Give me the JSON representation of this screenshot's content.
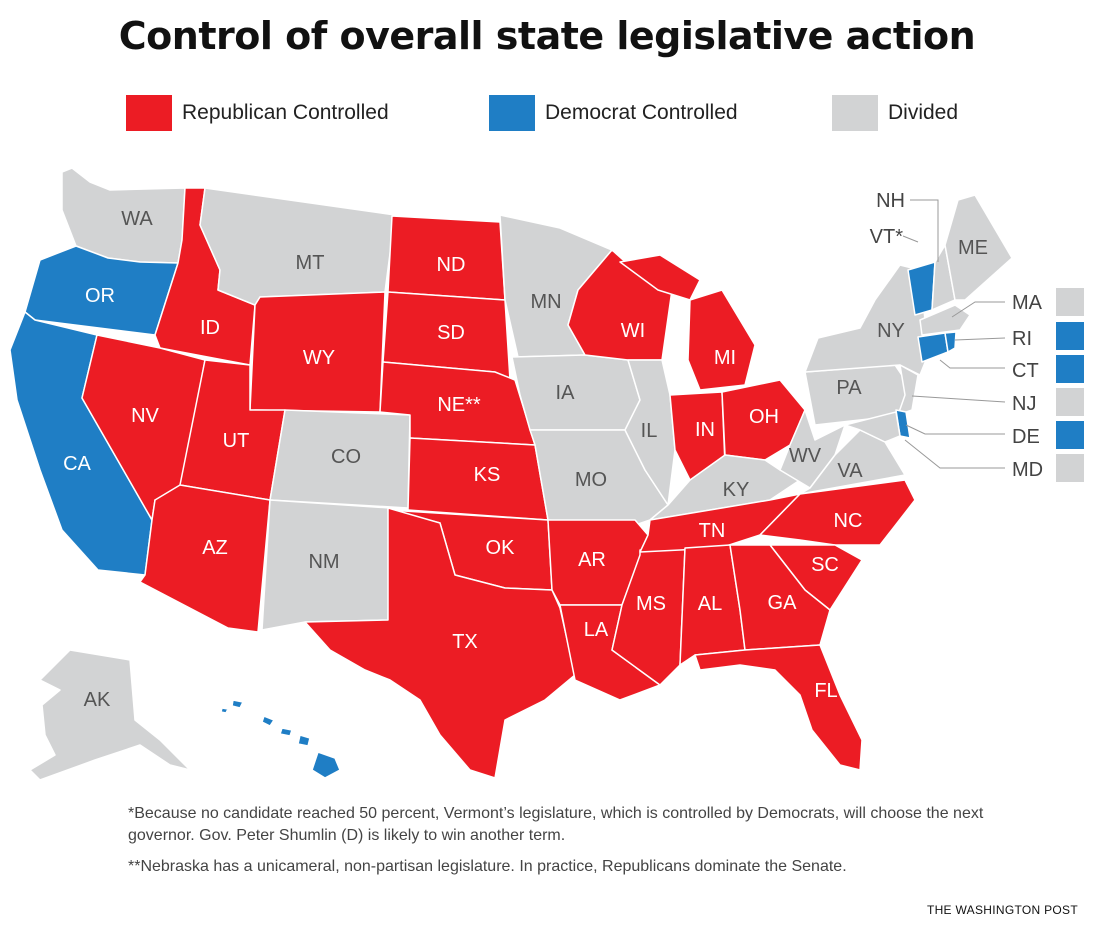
{
  "title": "Control of overall state legislative action",
  "colors": {
    "republican": "#ec1c24",
    "democrat": "#1f7ec5",
    "divided": "#d2d3d4",
    "border": "#ffffff"
  },
  "legend": [
    {
      "key": "republican",
      "label": "Republican Controlled"
    },
    {
      "key": "democrat",
      "label": "Democrat Controlled"
    },
    {
      "key": "divided",
      "label": "Divided"
    }
  ],
  "states": {
    "WA": {
      "label": "WA",
      "control": "divided"
    },
    "OR": {
      "label": "OR",
      "control": "democrat"
    },
    "CA": {
      "label": "CA",
      "control": "democrat"
    },
    "ID": {
      "label": "ID",
      "control": "republican"
    },
    "NV": {
      "label": "NV",
      "control": "republican"
    },
    "MT": {
      "label": "MT",
      "control": "divided"
    },
    "WY": {
      "label": "WY",
      "control": "republican"
    },
    "UT": {
      "label": "UT",
      "control": "republican"
    },
    "AZ": {
      "label": "AZ",
      "control": "republican"
    },
    "CO": {
      "label": "CO",
      "control": "divided"
    },
    "NM": {
      "label": "NM",
      "control": "divided"
    },
    "ND": {
      "label": "ND",
      "control": "republican"
    },
    "SD": {
      "label": "SD",
      "control": "republican"
    },
    "NE": {
      "label": "NE**",
      "control": "republican"
    },
    "KS": {
      "label": "KS",
      "control": "republican"
    },
    "OK": {
      "label": "OK",
      "control": "republican"
    },
    "TX": {
      "label": "TX",
      "control": "republican"
    },
    "MN": {
      "label": "MN",
      "control": "divided"
    },
    "IA": {
      "label": "IA",
      "control": "divided"
    },
    "MO": {
      "label": "MO",
      "control": "divided"
    },
    "AR": {
      "label": "AR",
      "control": "republican"
    },
    "LA": {
      "label": "LA",
      "control": "republican"
    },
    "WI": {
      "label": "WI",
      "control": "republican"
    },
    "IL": {
      "label": "IL",
      "control": "divided"
    },
    "MS": {
      "label": "MS",
      "control": "republican"
    },
    "MI": {
      "label": "MI",
      "control": "republican"
    },
    "IN": {
      "label": "IN",
      "control": "republican"
    },
    "KY": {
      "label": "KY",
      "control": "divided"
    },
    "TN": {
      "label": "TN",
      "control": "republican"
    },
    "AL": {
      "label": "AL",
      "control": "republican"
    },
    "OH": {
      "label": "OH",
      "control": "republican"
    },
    "WV": {
      "label": "WV",
      "control": "divided"
    },
    "VA": {
      "label": "VA",
      "control": "divided"
    },
    "NC": {
      "label": "NC",
      "control": "republican"
    },
    "SC": {
      "label": "SC",
      "control": "republican"
    },
    "GA": {
      "label": "GA",
      "control": "republican"
    },
    "FL": {
      "label": "FL",
      "control": "republican"
    },
    "PA": {
      "label": "PA",
      "control": "divided"
    },
    "NY": {
      "label": "NY",
      "control": "divided"
    },
    "VT": {
      "label": "VT*",
      "control": "democrat"
    },
    "NH": {
      "label": "NH",
      "control": "divided"
    },
    "ME": {
      "label": "ME",
      "control": "divided"
    },
    "MA": {
      "label": "MA",
      "control": "divided"
    },
    "RI": {
      "label": "RI",
      "control": "democrat"
    },
    "CT": {
      "label": "CT",
      "control": "democrat"
    },
    "NJ": {
      "label": "NJ",
      "control": "divided"
    },
    "DE": {
      "label": "DE",
      "control": "democrat"
    },
    "MD": {
      "label": "MD",
      "control": "divided"
    },
    "AK": {
      "label": "AK",
      "control": "divided"
    },
    "HI": {
      "label": "HI",
      "control": "democrat"
    }
  },
  "footnotes": [
    "*Because no candidate reached 50 percent, Vermont’s legislature, which is controlled by Democrats, will choose the next governor. Gov. Peter Shumlin (D) is likely to win another term.",
    "**Nebraska has a unicameral, non-partisan legislature. In practice, Republicans dominate the Senate."
  ],
  "source": "THE WASHINGTON POST"
}
